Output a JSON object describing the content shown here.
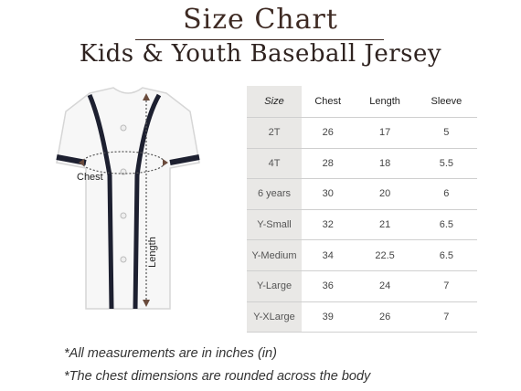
{
  "header": {
    "title": "Size Chart",
    "subtitle": "Kids & Youth Baseball Jersey"
  },
  "jersey": {
    "chest_label": "Chest",
    "length_label": "Length"
  },
  "table": {
    "headers": [
      "Size",
      "Chest",
      "Length",
      "Sleeve"
    ],
    "rows": [
      [
        "2T",
        "26",
        "17",
        "5"
      ],
      [
        "4T",
        "28",
        "18",
        "5.5"
      ],
      [
        "6 years",
        "30",
        "20",
        "6"
      ],
      [
        "Y-Small",
        "32",
        "21",
        "6.5"
      ],
      [
        "Y-Medium",
        "34",
        "22.5",
        "6.5"
      ],
      [
        "Y-Large",
        "36",
        "24",
        "7"
      ],
      [
        "Y-XLarge",
        "39",
        "26",
        "7"
      ]
    ]
  },
  "notes": {
    "line1": "*All measurements are in inches (in)",
    "line2": "*The chest dimensions are rounded across the body"
  }
}
